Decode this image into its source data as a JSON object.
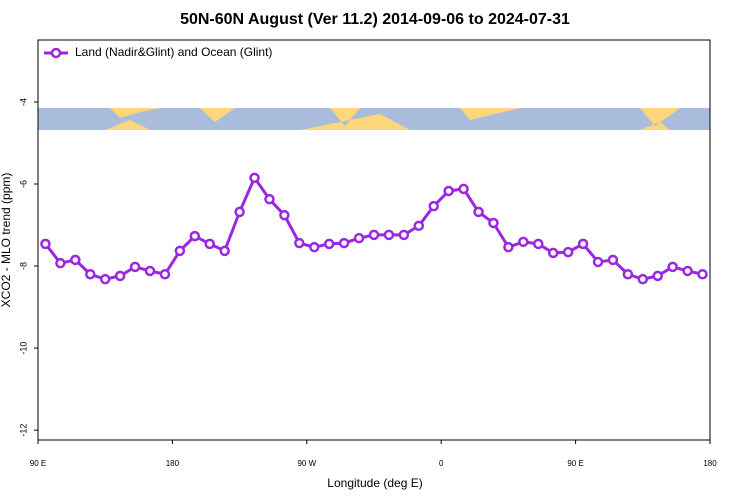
{
  "chart_data": {
    "type": "line",
    "title": "50N-60N August (Ver 11.2)   2014-09-06 to 2024-07-31",
    "x_label": "Longitude (deg E)",
    "y_label": "XCO2 - MLO trend (ppm)",
    "x": [
      95,
      105,
      115,
      125,
      135,
      145,
      155,
      165,
      175,
      185,
      195,
      205,
      215,
      225,
      235,
      245,
      255,
      265,
      275,
      285,
      295,
      305,
      315,
      325,
      335,
      345,
      355,
      365,
      375,
      385,
      395,
      405,
      415,
      425,
      435,
      445,
      455,
      465,
      475,
      485,
      495,
      505,
      515,
      525,
      535
    ],
    "series": [
      {
        "name": "Land (Nadir&Glint) and Ocean (Glint)",
        "color": "#9b27e0",
        "values": [
          -7.46,
          -7.93,
          -7.85,
          -8.2,
          -8.32,
          -8.24,
          -8.02,
          -8.12,
          -8.2,
          -7.63,
          -7.27,
          -7.46,
          -7.63,
          -6.68,
          -5.85,
          -6.37,
          -6.76,
          -7.44,
          -7.54,
          -7.46,
          -7.44,
          -7.32,
          -7.24,
          -7.24,
          -7.24,
          -7.02,
          -6.54,
          -6.17,
          -6.12,
          -6.68,
          -6.95,
          -7.54,
          -7.41,
          -7.46,
          -7.68,
          -7.66,
          -7.46,
          -7.9,
          -7.85,
          -8.2,
          -8.32,
          -8.24,
          -8.02,
          -8.12,
          -8.2
        ]
      }
    ],
    "xlim": [
      90,
      540
    ],
    "xticks": [
      {
        "value": 90,
        "label": "90 E"
      },
      180,
      {
        "value": 270,
        "label": "90 W"
      },
      {
        "value": 360,
        "label": "0"
      },
      {
        "value": 450,
        "label": "90 E"
      },
      180
    ],
    "ylim": [
      -12.24,
      -2.49
    ],
    "yticks": [
      -12,
      -10,
      -8,
      -6,
      -4
    ],
    "legend": "top-left"
  }
}
